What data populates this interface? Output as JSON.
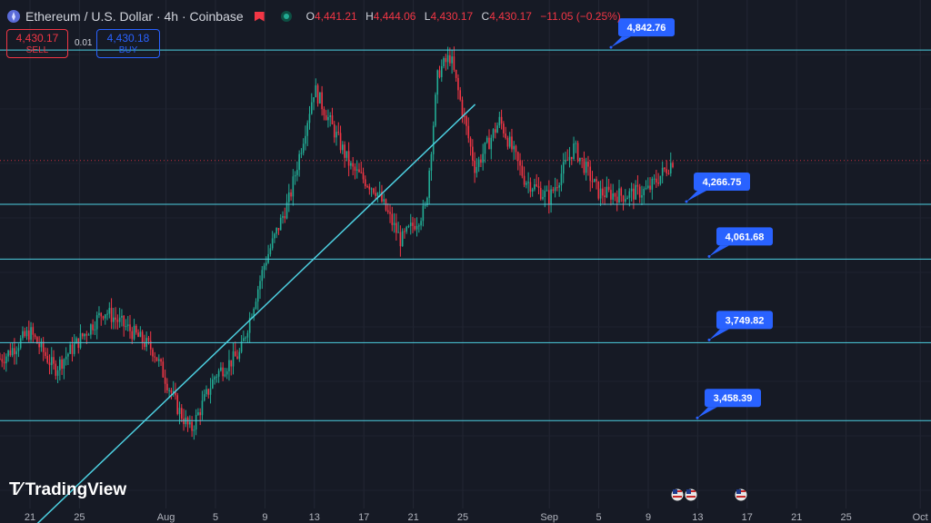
{
  "header": {
    "symbol": "Ethereum / U.S. Dollar · 4h · Coinbase",
    "open_label": "O",
    "open": "4,441.21",
    "high_label": "H",
    "high": "4,444.06",
    "low_label": "L",
    "low": "4,430.17",
    "close_label": "C",
    "close": "4,430.17",
    "change": "−11.05 (−0.25%)"
  },
  "trade": {
    "sell_price": "4,430.17",
    "sell_label": "SELL",
    "spread": "0.01",
    "buy_price": "4,430.18",
    "buy_label": "BUY"
  },
  "logo": {
    "text": "TradingView"
  },
  "colors": {
    "up": "#22ab94",
    "down": "#f23645",
    "line": "#4dd0e1",
    "callout": "#2962ff",
    "background": "#161a25"
  },
  "chart_data": {
    "type": "candlestick",
    "instrument": "Ethereum / U.S. Dollar",
    "timeframe": "4h",
    "x_tick_labels": [
      "21",
      "25",
      "Aug",
      "5",
      "9",
      "13",
      "17",
      "21",
      "25",
      "Sep",
      "5",
      "9",
      "13",
      "17",
      "21",
      "25",
      "Oct"
    ],
    "ylim": [
      3130,
      5030
    ],
    "levels": [
      4842.76,
      4266.75,
      4061.68,
      3749.82,
      3458.39
    ],
    "level_labels": [
      "4,842.76",
      "4,266.75",
      "4,061.68",
      "3,749.82",
      "3,458.39"
    ],
    "last_price": 4430.17,
    "trendline": {
      "from": [
        "Jul 21",
        3050
      ],
      "to": [
        "Aug 26",
        4640
      ]
    },
    "price_path": [
      [
        "Jul 17",
        3650
      ],
      [
        "Jul 19",
        3700
      ],
      [
        "Jul 21",
        3790
      ],
      [
        "Jul 23",
        3650
      ],
      [
        "Jul 25",
        3760
      ],
      [
        "Jul 27",
        3870
      ],
      [
        "Jul 29",
        3800
      ],
      [
        "Jul 31",
        3720
      ],
      [
        "Aug 2",
        3500
      ],
      [
        "Aug 3",
        3420
      ],
      [
        "Aug 5",
        3630
      ],
      [
        "Aug 7",
        3710
      ],
      [
        "Aug 9",
        4050
      ],
      [
        "Aug 11",
        4290
      ],
      [
        "Aug 13",
        4700
      ],
      [
        "Aug 14",
        4600
      ],
      [
        "Aug 16",
        4400
      ],
      [
        "Aug 18",
        4320
      ],
      [
        "Aug 20",
        4130
      ],
      [
        "Aug 22",
        4250
      ],
      [
        "Aug 23",
        4760
      ],
      [
        "Aug 24",
        4820
      ],
      [
        "Aug 26",
        4400
      ],
      [
        "Aug 28",
        4580
      ],
      [
        "Aug 30",
        4360
      ],
      [
        "Sep 1",
        4290
      ],
      [
        "Sep 3",
        4480
      ],
      [
        "Sep 5",
        4310
      ],
      [
        "Sep 7",
        4300
      ],
      [
        "Sep 9",
        4320
      ],
      [
        "Sep 11",
        4430
      ]
    ],
    "event_markers": [
      "us-flag",
      "us-flag",
      "us-flag"
    ]
  }
}
